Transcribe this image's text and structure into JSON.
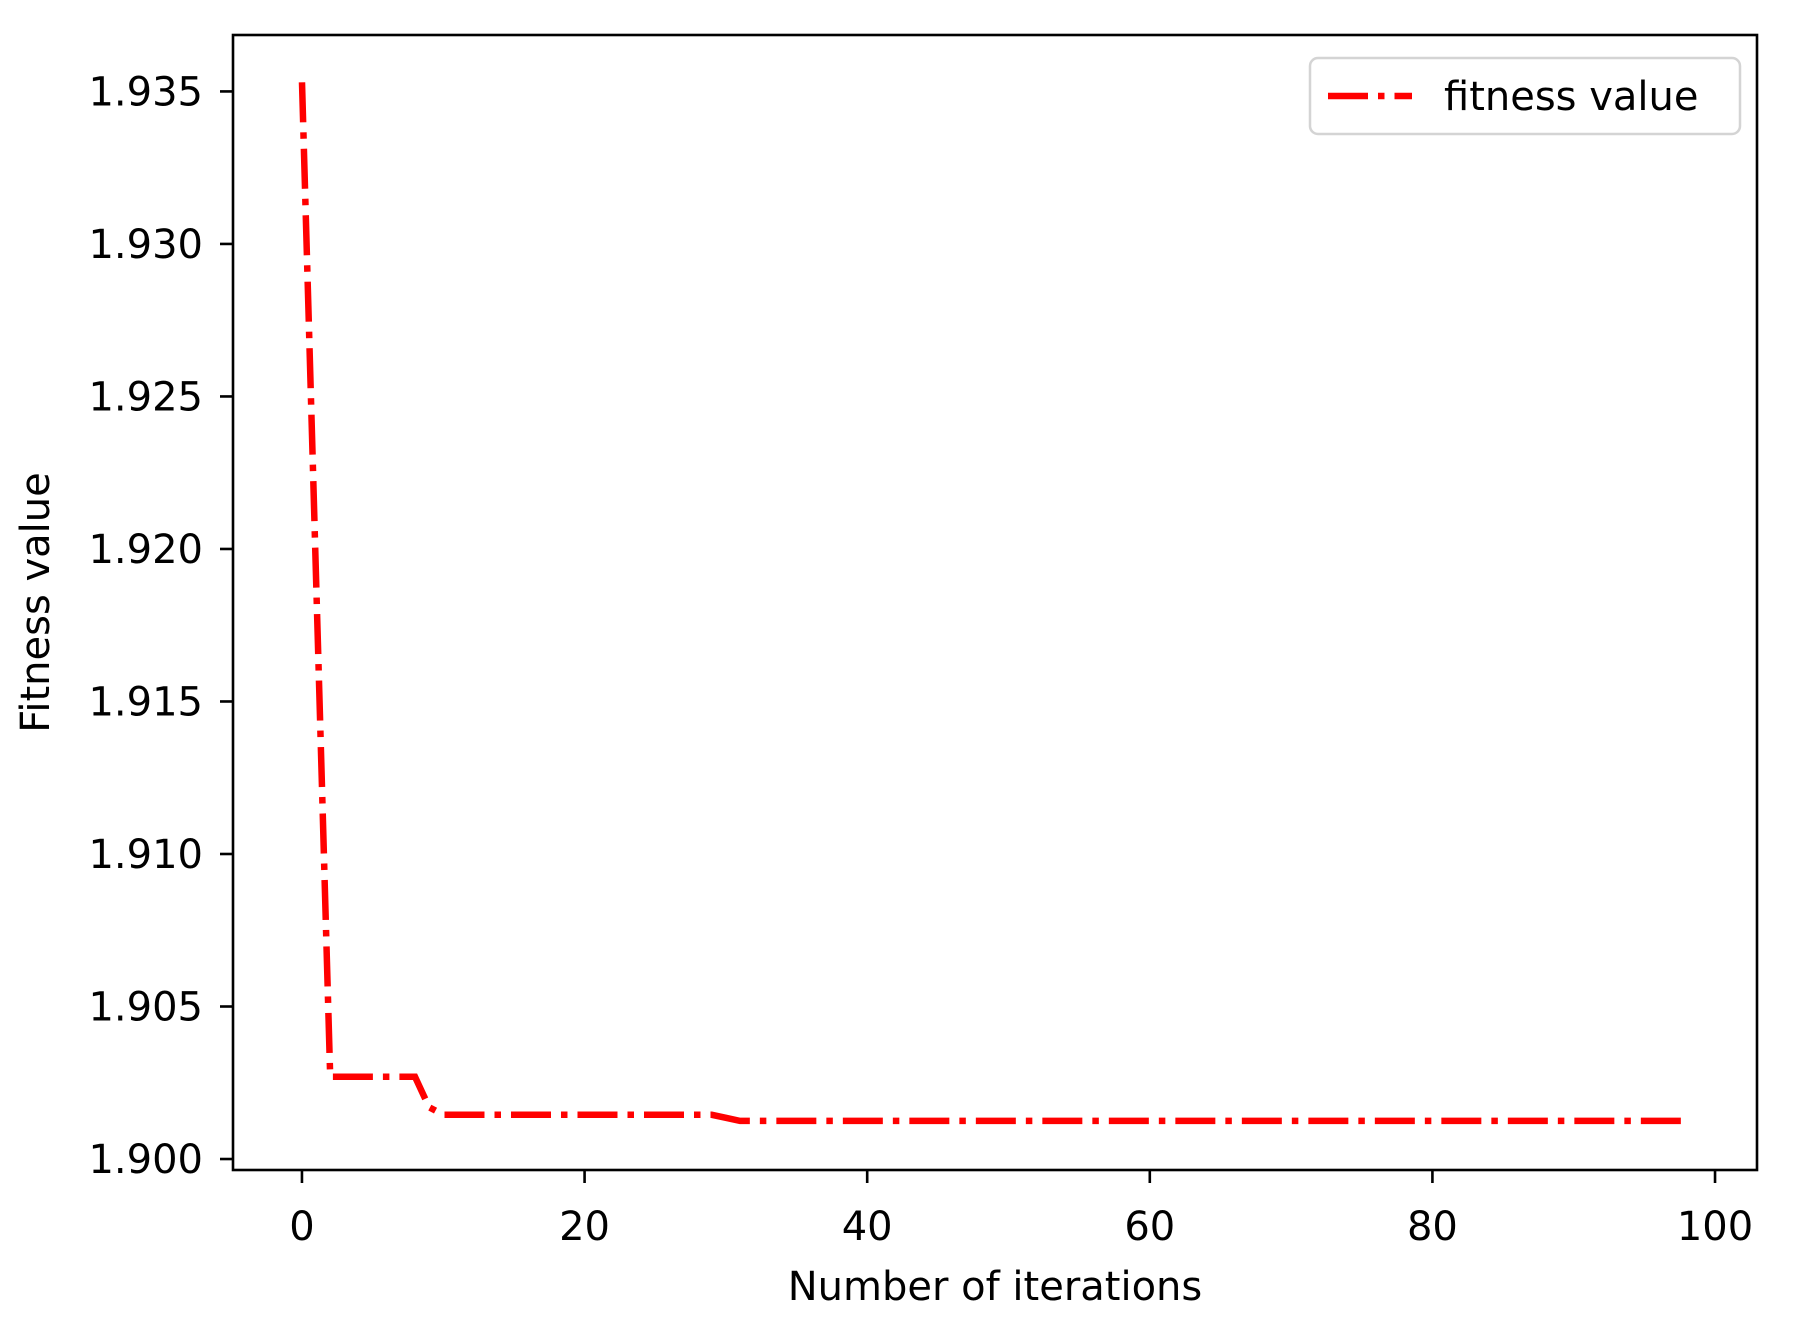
{
  "figure": {
    "background": "#ffffff",
    "frame_color": "#000000"
  },
  "chart_data": {
    "type": "line",
    "title": "",
    "xlabel": "Number of iterations",
    "ylabel": "Fitness value",
    "grid": false,
    "xlim": [
      -4.88,
      102.97
    ],
    "ylim": [
      1.89964,
      1.93685
    ],
    "x_ticks": {
      "values": [
        0,
        20,
        40,
        60,
        80,
        100
      ],
      "labels": [
        "0",
        "20",
        "40",
        "60",
        "80",
        "100"
      ]
    },
    "y_ticks": {
      "values": [
        1.9,
        1.905,
        1.91,
        1.915,
        1.92,
        1.925,
        1.93,
        1.935
      ],
      "labels": [
        "1.900",
        "1.905",
        "1.910",
        "1.915",
        "1.920",
        "1.925",
        "1.930",
        "1.935"
      ]
    },
    "legend": {
      "label": "fitness value",
      "loc": "upper right"
    },
    "series": [
      {
        "name": "fitness value",
        "color": "#ff0000",
        "linestyle": "dashdot",
        "x": [
          0,
          1,
          2,
          3,
          4,
          5,
          6,
          7,
          8,
          9,
          10,
          11,
          12,
          13,
          14,
          15,
          16,
          17,
          18,
          19,
          20,
          21,
          22,
          23,
          24,
          25,
          26,
          27,
          28,
          29,
          30,
          31,
          32,
          33,
          34,
          35,
          36,
          37,
          38,
          39,
          40,
          41,
          42,
          43,
          44,
          45,
          46,
          47,
          48,
          49,
          50,
          51,
          52,
          53,
          54,
          55,
          56,
          57,
          58,
          59,
          60,
          61,
          62,
          63,
          64,
          65,
          66,
          67,
          68,
          69,
          70,
          71,
          72,
          73,
          74,
          75,
          76,
          77,
          78,
          79,
          80,
          81,
          82,
          83,
          84,
          85,
          86,
          87,
          88,
          89,
          90,
          91,
          92,
          93,
          94,
          95,
          96,
          97,
          98
        ],
        "y": [
          1.9353,
          1.919,
          1.9027,
          1.9027,
          1.9027,
          1.9027,
          1.9027,
          1.9027,
          1.9027,
          1.9017,
          1.90145,
          1.90145,
          1.90145,
          1.90145,
          1.90145,
          1.90145,
          1.90145,
          1.90145,
          1.90145,
          1.90145,
          1.90145,
          1.90145,
          1.90145,
          1.90145,
          1.90145,
          1.90145,
          1.90145,
          1.90145,
          1.90145,
          1.90145,
          1.90135,
          1.90125,
          1.90125,
          1.90125,
          1.90125,
          1.90125,
          1.90125,
          1.90125,
          1.90125,
          1.90125,
          1.90125,
          1.90125,
          1.90125,
          1.90125,
          1.90125,
          1.90125,
          1.90125,
          1.90125,
          1.90125,
          1.90125,
          1.90125,
          1.90125,
          1.90125,
          1.90125,
          1.90125,
          1.90125,
          1.90125,
          1.90125,
          1.90125,
          1.90125,
          1.90125,
          1.90125,
          1.90125,
          1.90125,
          1.90125,
          1.90125,
          1.90125,
          1.90125,
          1.90125,
          1.90125,
          1.90125,
          1.90125,
          1.90125,
          1.90125,
          1.90125,
          1.90125,
          1.90125,
          1.90125,
          1.90125,
          1.90125,
          1.90125,
          1.90125,
          1.90125,
          1.90125,
          1.90125,
          1.90125,
          1.90125,
          1.90125,
          1.90125,
          1.90125,
          1.90125,
          1.90125,
          1.90125,
          1.90125,
          1.90125,
          1.90125,
          1.90125,
          1.90125,
          1.90125
        ]
      }
    ]
  }
}
